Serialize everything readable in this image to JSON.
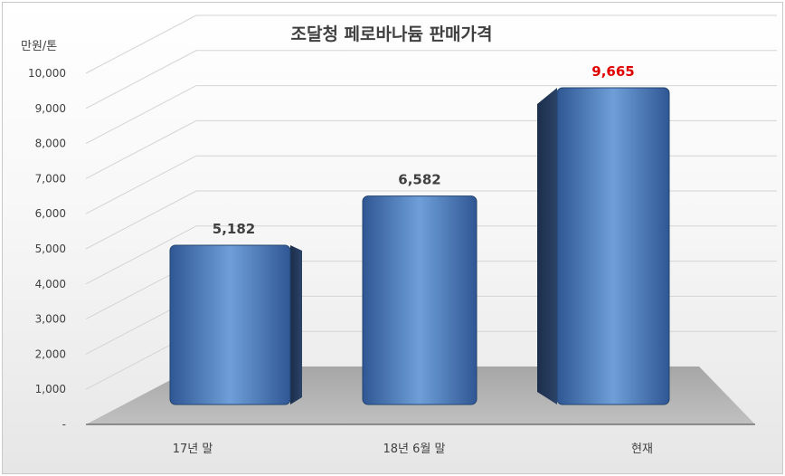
{
  "chart_data": {
    "type": "bar",
    "title": "조달청 페로바나듐 판매가격",
    "ylabel": "만원/톤",
    "xlabel": "",
    "ylim": [
      0,
      10000
    ],
    "yticks": [
      "-",
      "1,000",
      "2,000",
      "3,000",
      "4,000",
      "5,000",
      "6,000",
      "7,000",
      "8,000",
      "9,000",
      "10,000"
    ],
    "categories": [
      "17년 말",
      "18년 6월 말",
      "현재"
    ],
    "values": [
      5182,
      6582,
      9665
    ],
    "value_labels": [
      "5,182",
      "6,582",
      "9,665"
    ],
    "grid": true,
    "legend": "none",
    "bar_color": "#4a78b6",
    "label_color": "#404040",
    "highlight_label_color": "#e00000",
    "highlight_index": 2
  }
}
